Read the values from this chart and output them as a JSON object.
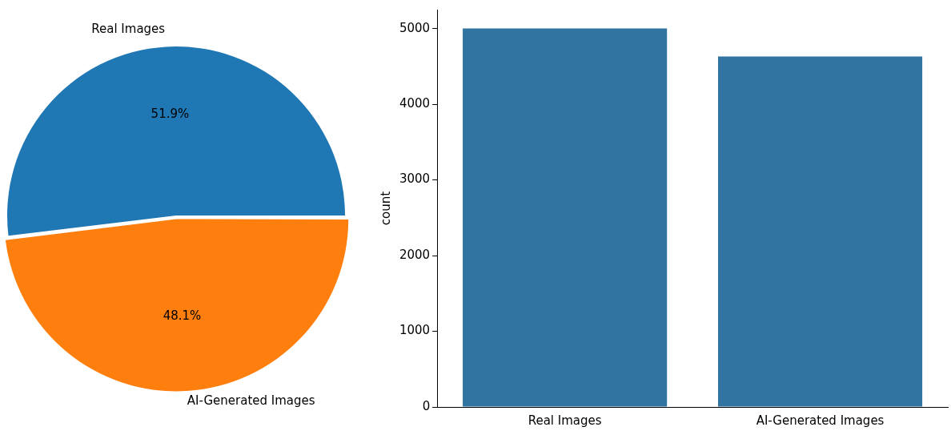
{
  "chart_data": [
    {
      "type": "pie",
      "categories": [
        "Real Images",
        "AI-Generated Images"
      ],
      "values": [
        51.9,
        48.1
      ],
      "colors": [
        "#1f77b4",
        "#ff7f0e"
      ],
      "value_labels": [
        "51.9%",
        "48.1%"
      ]
    },
    {
      "type": "bar",
      "categories": [
        "Real Images",
        "AI-Generated Images"
      ],
      "values": [
        5000,
        4630
      ],
      "color": "#3274a1",
      "ylabel": "count",
      "ylim": [
        0,
        5250
      ],
      "yticks": [
        0,
        1000,
        2000,
        3000,
        4000,
        5000
      ],
      "grid": false
    }
  ]
}
